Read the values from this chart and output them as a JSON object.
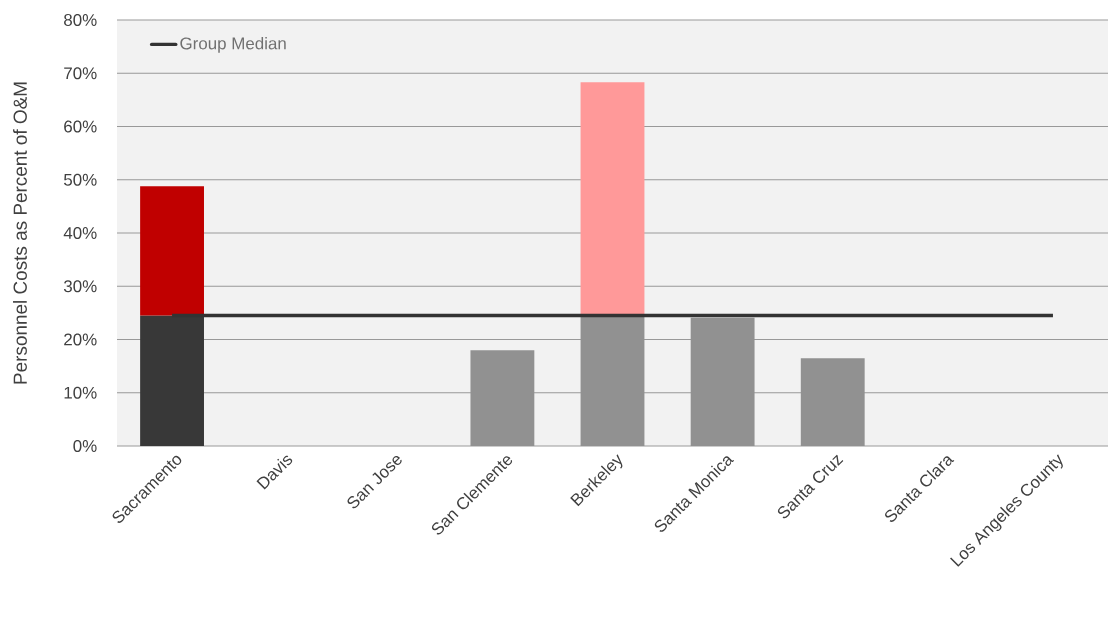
{
  "chart_data": {
    "type": "bar",
    "stacked": true,
    "ylabel": "Personnel Costs as Percent of O&M",
    "categories": [
      "Sacramento",
      "Davis",
      "San Jose",
      "San Clemente",
      "Berkeley",
      "Santa Monica",
      "Santa Cruz",
      "Santa Clara",
      "Los Angeles County"
    ],
    "series": [
      {
        "values": [
          24.5,
          null,
          null,
          18.0,
          24.5,
          24.1,
          16.5,
          null,
          null
        ],
        "colors": [
          "#383838",
          null,
          null,
          "#919191",
          "#919191",
          "#919191",
          "#919191",
          null,
          null
        ]
      },
      {
        "values": [
          24.3,
          null,
          null,
          null,
          43.8,
          null,
          null,
          null,
          null
        ],
        "colors": [
          "#c00000",
          null,
          null,
          null,
          "#ff9999",
          null,
          null,
          null,
          null
        ]
      },
      {
        "type": "line",
        "name": "Group Median",
        "color": "#333333",
        "values": [
          24.5,
          24.5,
          24.5,
          24.5,
          24.5,
          24.5,
          24.5,
          24.5,
          24.5
        ]
      }
    ],
    "ylim": [
      0,
      80
    ],
    "yticks": [
      {
        "value": 0,
        "label": "0%"
      },
      {
        "value": 10,
        "label": "10%"
      },
      {
        "value": 20,
        "label": "20%"
      },
      {
        "value": 30,
        "label": "30%"
      },
      {
        "value": 40,
        "label": "40%"
      },
      {
        "value": 50,
        "label": "50%"
      },
      {
        "value": 60,
        "label": "60%"
      },
      {
        "value": 70,
        "label": "70%"
      },
      {
        "value": 80,
        "label": "80%"
      }
    ],
    "grid": "y",
    "legend": "top left"
  }
}
